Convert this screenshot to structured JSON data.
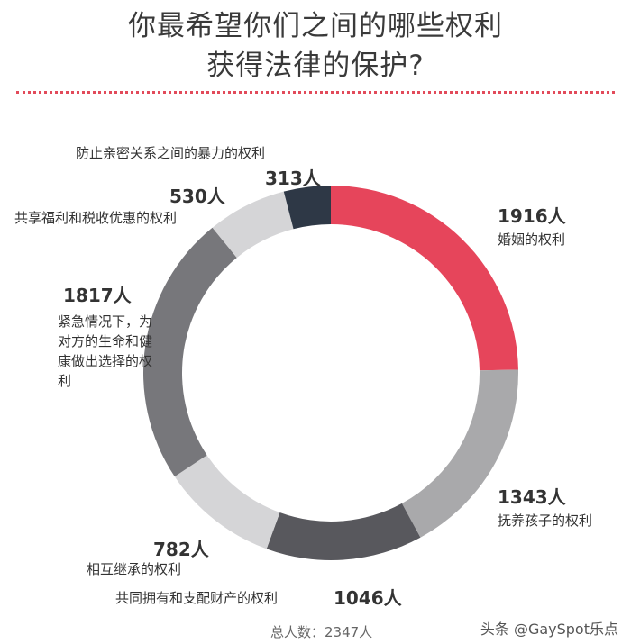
{
  "title": {
    "line1": "你最希望你们之间的哪些权利",
    "line2": "获得法律的保护?"
  },
  "chart_data": {
    "type": "pie",
    "variant": "donut",
    "total_label": "总人数：2347人",
    "categories": [
      "婚姻的权利",
      "抚养孩子的权利",
      "共同拥有和支配财产的权利",
      "相互继承的权利",
      "紧急情况下，为对方的生命和健康做出选择的权利",
      "共享福利和税收优惠的权利",
      "防止亲密关系之间的暴力的权利"
    ],
    "values": [
      1916,
      1343,
      1046,
      782,
      1817,
      530,
      313
    ],
    "value_labels": [
      "1916人",
      "1343人",
      "1046人",
      "782人",
      "1817人",
      "530人",
      "313人"
    ],
    "colors": [
      "#e6455b",
      "#a9a9ab",
      "#58585d",
      "#d5d5d7",
      "#77777b",
      "#d5d5d7",
      "#2e3846"
    ]
  },
  "watermark": "头条 @GaySpot乐点"
}
